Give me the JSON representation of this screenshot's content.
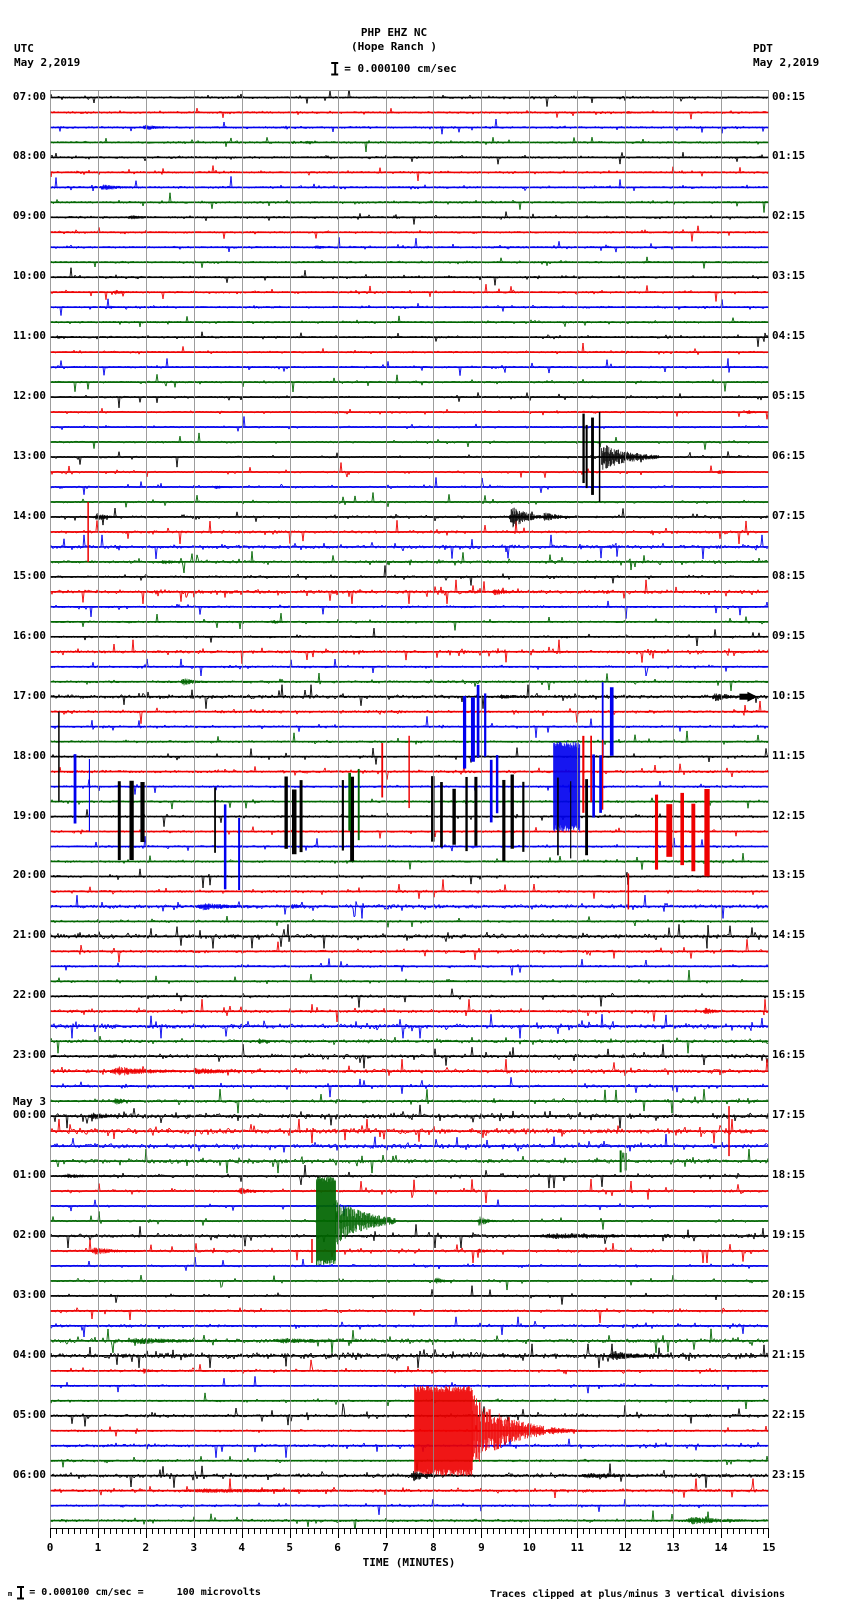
{
  "header": {
    "tz_left": "UTC",
    "date_left": "May 2,2019",
    "tz_right": "PDT",
    "date_right": "May 2,2019",
    "station": "PHP EHZ NC",
    "station_name": "(Hope Ranch )",
    "scale_label": "= 0.000100 cm/sec"
  },
  "footer": {
    "scale_prefix": "m",
    "scale_text": "= 0.000100 cm/sec =",
    "scale_value": "100 microvolts",
    "clip_note": "Traces clipped at plus/minus 3 vertical divisions"
  },
  "axis": {
    "title": "TIME (MINUTES)",
    "ticks": [
      "0",
      "1",
      "2",
      "3",
      "4",
      "5",
      "6",
      "7",
      "8",
      "9",
      "10",
      "11",
      "12",
      "13",
      "14",
      "15"
    ]
  },
  "left_labels": [
    {
      "label": "07:00"
    },
    {
      "label": "08:00"
    },
    {
      "label": "09:00"
    },
    {
      "label": "10:00"
    },
    {
      "label": "11:00"
    },
    {
      "label": "12:00"
    },
    {
      "label": "13:00"
    },
    {
      "label": "14:00"
    },
    {
      "label": "15:00"
    },
    {
      "label": "16:00"
    },
    {
      "label": "17:00"
    },
    {
      "label": "18:00"
    },
    {
      "label": "19:00"
    },
    {
      "label": "20:00"
    },
    {
      "label": "21:00"
    },
    {
      "label": "22:00"
    },
    {
      "label": "23:00"
    },
    {
      "pre": "May 3",
      "label": "00:00"
    },
    {
      "label": "01:00"
    },
    {
      "label": "02:00"
    },
    {
      "label": "03:00"
    },
    {
      "label": "04:00"
    },
    {
      "label": "05:00"
    },
    {
      "label": "06:00"
    }
  ],
  "right_labels": [
    "00:15",
    "01:15",
    "02:15",
    "03:15",
    "04:15",
    "05:15",
    "06:15",
    "07:15",
    "08:15",
    "09:15",
    "10:15",
    "11:15",
    "12:15",
    "13:15",
    "14:15",
    "15:15",
    "16:15",
    "17:15",
    "18:15",
    "19:15",
    "20:15",
    "21:15",
    "22:15",
    "23:15"
  ],
  "chart_data": {
    "type": "helicorder",
    "station": "PHP EHZ NC (Hope Ranch)",
    "start_utc": "May 2, 2019 07:00 UTC",
    "rows": 96,
    "minutes_per_row": 15,
    "clip_divisions": 3,
    "trace_colors": [
      "#000000",
      "#ee0000",
      "#0000ee",
      "#006600"
    ],
    "grid_color": "#8c8c8c",
    "base_noise": 0.8,
    "noisy_rows": {
      "28": 1.0,
      "29": 1.3,
      "30": 1.7,
      "31": 1.3,
      "32": 1.0,
      "33": 1.7,
      "34": 1.0,
      "37": 1.4,
      "39": 1.0,
      "40": 1.7,
      "41": 1.2,
      "45": 1.2,
      "53": 1.0,
      "54": 1.7,
      "56": 2.0,
      "57": 1.1,
      "60": 1.1,
      "61": 1.4,
      "62": 2.2,
      "63": 1.5,
      "64": 1.6,
      "65": 1.8,
      "66": 1.1,
      "67": 1.3,
      "68": 2.2,
      "69": 2.4,
      "70": 2.0,
      "71": 1.8,
      "72": 1.2,
      "73": 1.1,
      "76": 1.6,
      "77": 1.2,
      "81": 1.1,
      "82": 1.2,
      "83": 1.8,
      "84": 2.6,
      "85": 1.0,
      "88": 1.4,
      "90": 1.2,
      "92": 1.8,
      "93": 1.4,
      "95": 1.1
    },
    "events": [
      {
        "t": "b",
        "r": 1,
        "m0": 12.0,
        "m1": 12.3,
        "a": 2
      },
      {
        "t": "b",
        "r": 2,
        "m0": 1.9,
        "m1": 2.6,
        "a": 3
      },
      {
        "t": "b",
        "r": 3,
        "m0": 5.3,
        "m1": 5.7,
        "a": 2
      },
      {
        "t": "b",
        "r": 6,
        "m0": 1.0,
        "m1": 2.0,
        "a": 3
      },
      {
        "t": "b",
        "r": 8,
        "m0": 1.6,
        "m1": 2.3,
        "a": 2.5
      },
      {
        "t": "b",
        "r": 10,
        "m0": 5.5,
        "m1": 5.9,
        "a": 2.5
      },
      {
        "t": "b",
        "r": 13,
        "m0": 1.3,
        "m1": 1.8,
        "a": 2.5
      },
      {
        "t": "b",
        "r": 14,
        "m0": 1.2,
        "m1": 1.5,
        "a": 2
      },
      {
        "t": "b",
        "r": 16,
        "m0": 0.1,
        "m1": 0.5,
        "a": 2
      },
      {
        "t": "b",
        "r": 21,
        "m0": 14.5,
        "m1": 14.9,
        "a": 2.5
      },
      {
        "t": "s",
        "r": 24,
        "m0": 11.05,
        "m1": 11.3,
        "a": 45,
        "n": 3,
        "w": 3
      },
      {
        "t": "v",
        "r": 24,
        "m0": 11.45,
        "a": 45
      },
      {
        "t": "d",
        "r": 24,
        "m0": 11.5,
        "m1": 12.7,
        "a": 14
      },
      {
        "t": "b",
        "r": 25,
        "m0": 13.9,
        "m1": 14.3,
        "a": 3
      },
      {
        "t": "b",
        "r": 26,
        "m0": 3.4,
        "m1": 3.8,
        "a": 2.5
      },
      {
        "t": "v",
        "r": 29,
        "m0": 0.78,
        "a": 30
      },
      {
        "t": "b",
        "r": 28,
        "m0": 0.9,
        "m1": 1.5,
        "a": 4
      },
      {
        "t": "b",
        "r": 28,
        "m0": 9.55,
        "m1": 10.3,
        "a": 11
      },
      {
        "t": "d",
        "r": 28,
        "m0": 10.3,
        "m1": 11.0,
        "a": 5
      },
      {
        "t": "b",
        "r": 31,
        "m0": 2.3,
        "m1": 2.8,
        "a": 3
      },
      {
        "t": "b",
        "r": 33,
        "m0": 9.2,
        "m1": 9.8,
        "a": 4
      },
      {
        "t": "b",
        "r": 35,
        "m0": 4.6,
        "m1": 5.0,
        "a": 2.5
      },
      {
        "t": "b",
        "r": 39,
        "m0": 2.7,
        "m1": 3.3,
        "a": 4
      },
      {
        "t": "b",
        "r": 40,
        "m0": 9.3,
        "m1": 10.3,
        "a": 2.5
      },
      {
        "t": "b",
        "r": 40,
        "m0": 13.8,
        "m1": 14.5,
        "a": 5
      },
      {
        "t": "a",
        "r": 40,
        "m0": 14.55
      },
      {
        "t": "v",
        "r": 44,
        "m0": 0.17,
        "a": 45
      },
      {
        "t": "s",
        "r": 42,
        "m0": 8.55,
        "m1": 9.1,
        "a": 45,
        "n": 4,
        "w": 4
      },
      {
        "t": "s",
        "r": 42,
        "m0": 11.4,
        "m1": 11.8,
        "a": 45,
        "n": 2,
        "w": 4
      },
      {
        "t": "s",
        "r": 46,
        "m0": 0.35,
        "m1": 0.95,
        "a": 45,
        "n": 2,
        "w": 3
      },
      {
        "t": "s",
        "r": 46,
        "m0": 9.1,
        "m1": 9.4,
        "a": 45,
        "n": 2,
        "w": 3
      },
      {
        "t": "k",
        "r": 46,
        "m0": 10.5,
        "m1": 11.05,
        "a": 45
      },
      {
        "t": "s",
        "r": 46,
        "m0": 11.2,
        "m1": 11.55,
        "a": 40,
        "n": 2,
        "w": 3
      },
      {
        "t": "s",
        "r": 50,
        "m0": 3.5,
        "m1": 4.05,
        "a": 45,
        "n": 2,
        "w": 4
      },
      {
        "t": "s",
        "r": 48,
        "m0": 1.3,
        "m1": 2.0,
        "a": 45,
        "n": 3,
        "w": 5
      },
      {
        "t": "s",
        "r": 48,
        "m0": 3.3,
        "m1": 3.5,
        "a": 42,
        "n": 1,
        "w": 3
      },
      {
        "t": "s",
        "r": 48,
        "m0": 4.8,
        "m1": 5.3,
        "a": 45,
        "n": 3,
        "w": 6
      },
      {
        "t": "s",
        "r": 48,
        "m0": 6.0,
        "m1": 6.35,
        "a": 45,
        "n": 2,
        "w": 4
      },
      {
        "t": "s",
        "r": 48,
        "m0": 7.8,
        "m1": 9.0,
        "a": 45,
        "n": 5,
        "w": 4
      },
      {
        "t": "s",
        "r": 48,
        "m0": 9.3,
        "m1": 9.95,
        "a": 45,
        "n": 3,
        "w": 4
      },
      {
        "t": "s",
        "r": 48,
        "m0": 10.4,
        "m1": 11.3,
        "a": 42,
        "n": 3,
        "w": 3
      },
      {
        "t": "s",
        "r": 47,
        "m0": 6.15,
        "m1": 6.5,
        "a": 40,
        "n": 2,
        "w": 4
      },
      {
        "t": "s",
        "r": 45,
        "m0": 6.85,
        "m1": 6.95,
        "a": 40,
        "n": 1,
        "w": 2
      },
      {
        "t": "s",
        "r": 45,
        "m0": 7.4,
        "m1": 7.55,
        "a": 45,
        "n": 1,
        "w": 3
      },
      {
        "t": "s",
        "r": 45,
        "m0": 11.0,
        "m1": 11.6,
        "a": 45,
        "n": 3,
        "w": 3
      },
      {
        "t": "s",
        "r": 49,
        "m0": 12.5,
        "m1": 13.75,
        "a": 45,
        "n": 5,
        "w": 6
      },
      {
        "t": "v",
        "r": 53,
        "m0": 12.05,
        "a": 18
      },
      {
        "t": "b",
        "r": 54,
        "m0": 3.0,
        "m1": 4.6,
        "a": 4
      },
      {
        "t": "b",
        "r": 54,
        "m0": 5.0,
        "m1": 5.5,
        "a": 3
      },
      {
        "t": "b",
        "r": 61,
        "m0": 13.6,
        "m1": 14.1,
        "a": 4
      },
      {
        "t": "b",
        "r": 63,
        "m0": 4.3,
        "m1": 4.8,
        "a": 3
      },
      {
        "t": "b",
        "r": 65,
        "m0": 1.2,
        "m1": 3.0,
        "a": 5
      },
      {
        "t": "d",
        "r": 65,
        "m0": 3.0,
        "m1": 4.9,
        "a": 3.5
      },
      {
        "t": "b",
        "r": 67,
        "m0": 1.3,
        "m1": 1.8,
        "a": 4
      },
      {
        "t": "b",
        "r": 68,
        "m0": 0.8,
        "m1": 1.6,
        "a": 4
      },
      {
        "t": "v",
        "r": 69,
        "m0": 14.15,
        "a": 25
      },
      {
        "t": "s",
        "r": 71,
        "m0": 11.8,
        "m1": 12.05,
        "a": 12,
        "n": 2,
        "w": 2
      },
      {
        "t": "b",
        "r": 72,
        "m0": 0.2,
        "m1": 1.5,
        "a": 2.5
      },
      {
        "t": "b",
        "r": 73,
        "m0": 3.9,
        "m1": 4.5,
        "a": 4
      },
      {
        "t": "k",
        "r": 75,
        "m0": 5.55,
        "m1": 5.95,
        "a": 45
      },
      {
        "t": "d",
        "r": 75,
        "m0": 5.95,
        "m1": 7.2,
        "a": 25
      },
      {
        "t": "b",
        "r": 75,
        "m0": 8.9,
        "m1": 9.3,
        "a": 6
      },
      {
        "t": "b",
        "r": 76,
        "m0": 10.0,
        "m1": 14.0,
        "a": 3
      },
      {
        "t": "v",
        "r": 77,
        "m0": 5.45,
        "a": 12
      },
      {
        "t": "b",
        "r": 77,
        "m0": 0.8,
        "m1": 1.9,
        "a": 4
      },
      {
        "t": "b",
        "r": 77,
        "m0": 8.9,
        "m1": 9.2,
        "a": 3
      },
      {
        "t": "b",
        "r": 79,
        "m0": 8.0,
        "m1": 8.4,
        "a": 4
      },
      {
        "t": "b",
        "r": 83,
        "m0": 1.5,
        "m1": 4.2,
        "a": 3.5
      },
      {
        "t": "b",
        "r": 83,
        "m0": 4.6,
        "m1": 7.0,
        "a": 3
      },
      {
        "t": "b",
        "r": 84,
        "m0": 11.6,
        "m1": 12.9,
        "a": 5
      },
      {
        "t": "b",
        "r": 85,
        "m0": 1.9,
        "m1": 2.3,
        "a": 3
      },
      {
        "t": "k",
        "r": 89,
        "m0": 7.6,
        "m1": 8.8,
        "a": 45
      },
      {
        "t": "d",
        "r": 89,
        "m0": 8.8,
        "m1": 10.3,
        "a": 38
      },
      {
        "t": "b",
        "r": 89,
        "m0": 10.3,
        "m1": 11.5,
        "a": 4
      },
      {
        "t": "b",
        "r": 92,
        "m0": 7.5,
        "m1": 8.1,
        "a": 6
      },
      {
        "t": "b",
        "r": 92,
        "m0": 11.0,
        "m1": 12.8,
        "a": 3
      },
      {
        "t": "b",
        "r": 93,
        "m0": 2.5,
        "m1": 8.5,
        "a": 2.5
      },
      {
        "t": "b",
        "r": 95,
        "m0": 13.2,
        "m1": 14.9,
        "a": 4
      }
    ]
  }
}
